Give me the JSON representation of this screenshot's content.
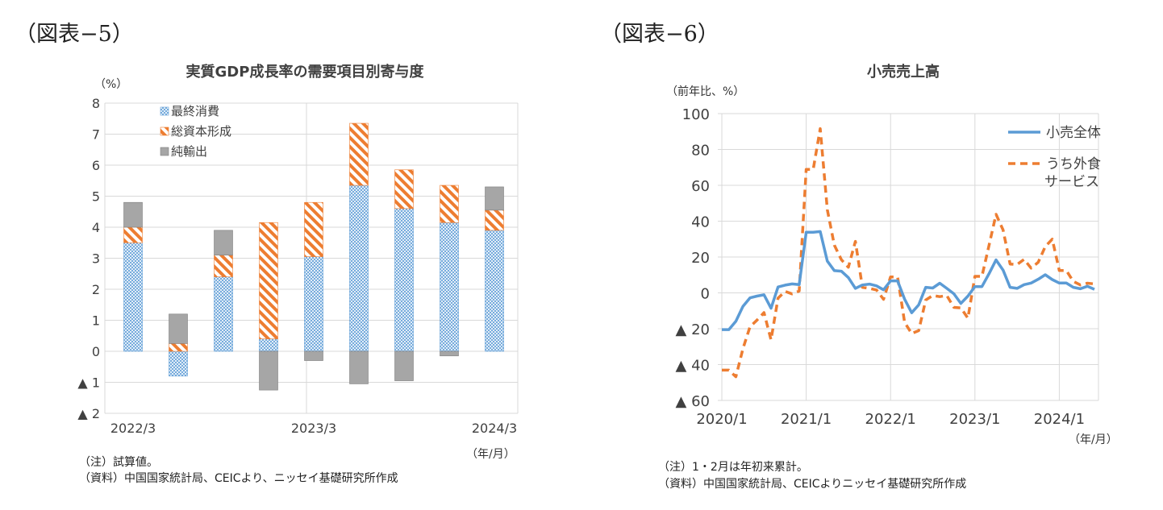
{
  "figures": [
    {
      "label": "（図表−5）",
      "title": "実質GDP成長率の需要項目別寄与度",
      "unit": "（%）",
      "xunit": "（年/月）",
      "notes": [
        "（注）試算値。",
        "（資料）中国国家統計局、CEICより、ニッセイ基礎研究所作成"
      ]
    },
    {
      "label": "（図表−6）",
      "title": "小売売上高",
      "unit": "（前年比、%）",
      "xunit": "（年/月）",
      "notes": [
        "（注）1・2月は年初来累計。",
        "（資料）中国国家統計局、CEICよりニッセイ基礎研究所作成"
      ]
    }
  ],
  "chart_data": [
    {
      "type": "bar",
      "stacked": true,
      "title": "実質GDP成長率の需要項目別寄与度",
      "ylabel": "（%）",
      "xlabel": "（年/月）",
      "ylim": [
        -2,
        8
      ],
      "yticks": [
        {
          "v": 8,
          "label": "8"
        },
        {
          "v": 7,
          "label": "7"
        },
        {
          "v": 6,
          "label": "6"
        },
        {
          "v": 5,
          "label": "5"
        },
        {
          "v": 4,
          "label": "4"
        },
        {
          "v": 3,
          "label": "3"
        },
        {
          "v": 2,
          "label": "2"
        },
        {
          "v": 1,
          "label": "1"
        },
        {
          "v": 0,
          "label": "0"
        },
        {
          "v": -1,
          "label": "▲ 1"
        },
        {
          "v": -2,
          "label": "▲ 2"
        }
      ],
      "categories": [
        "2022/3",
        "2022/6",
        "2022/9",
        "2022/12",
        "2023/3",
        "2023/6",
        "2023/9",
        "2023/12",
        "2024/3"
      ],
      "xtick_labels": [
        "2022/3",
        "",
        "",
        "",
        "2023/3",
        "",
        "",
        "",
        "2024/3"
      ],
      "grid": true,
      "legend_position": "top-left",
      "series": [
        {
          "name": "最終消費",
          "pattern": "dots",
          "color": "#5b9bd5",
          "values": [
            3.5,
            -0.8,
            2.4,
            0.4,
            3.05,
            5.35,
            4.6,
            4.15,
            3.9
          ]
        },
        {
          "name": "総資本形成",
          "pattern": "stripes",
          "color": "#ed7d31",
          "values": [
            0.5,
            0.25,
            0.7,
            3.75,
            1.75,
            2.0,
            1.25,
            1.2,
            0.65
          ]
        },
        {
          "name": "純輸出",
          "pattern": "solid",
          "color": "#a6a6a6",
          "values": [
            0.8,
            0.95,
            0.8,
            -1.25,
            -0.3,
            -1.05,
            -0.95,
            -0.15,
            0.75
          ]
        }
      ]
    },
    {
      "type": "line",
      "title": "小売売上高",
      "ylabel": "（前年比、%）",
      "xlabel": "（年/月）",
      "ylim": [
        -60,
        100
      ],
      "yticks": [
        {
          "v": 100,
          "label": "100"
        },
        {
          "v": 80,
          "label": "80"
        },
        {
          "v": 60,
          "label": "60"
        },
        {
          "v": 40,
          "label": "40"
        },
        {
          "v": 20,
          "label": "20"
        },
        {
          "v": 0,
          "label": "0"
        },
        {
          "v": -20,
          "label": "▲ 20"
        },
        {
          "v": -40,
          "label": "▲ 40"
        },
        {
          "v": -60,
          "label": "▲ 60"
        }
      ],
      "x_start": "2020/1",
      "x_end": "2024/6",
      "xtick_labels": [
        "2020/1",
        "2021/1",
        "2022/1",
        "2023/1",
        "2024/1"
      ],
      "grid": true,
      "legend_position": "top-right",
      "series": [
        {
          "name": "小売全体",
          "style": "solid",
          "color": "#5b9bd5",
          "width": 3.5,
          "values": [
            -20.5,
            -20.5,
            -15.8,
            -7.5,
            -2.8,
            -1.8,
            -1.1,
            -8.6,
            3.3,
            4.3,
            5,
            4.6,
            33.8,
            33.8,
            34.2,
            17.7,
            12.4,
            12.1,
            8.5,
            2.5,
            4.4,
            4.9,
            3.9,
            1.7,
            6.7,
            6.7,
            -3.5,
            -11.1,
            -6.7,
            3.1,
            2.7,
            5.4,
            2.5,
            -0.5,
            -5.9,
            -1.8,
            3.5,
            3.5,
            10.6,
            18.4,
            12.7,
            3.1,
            2.5,
            4.6,
            5.5,
            7.6,
            10.1,
            7.4,
            5.5,
            5.5,
            3.1,
            2.3,
            3.7,
            2.0
          ]
        },
        {
          "name": "うち外食\nサービス",
          "style": "dashed",
          "color": "#ed7d31",
          "width": 3.5,
          "values": [
            -43.1,
            -43.1,
            -46.8,
            -31.1,
            -18.9,
            -15.2,
            -11,
            -26.2,
            -2.9,
            0.8,
            -0.6,
            1,
            68.9,
            68.9,
            91.6,
            46.4,
            26.6,
            18.5,
            14.3,
            28.7,
            3.1,
            2.5,
            1.6,
            -3.6,
            8.9,
            8.9,
            -16.4,
            -22.7,
            -21.1,
            -4,
            -1.5,
            -2.1,
            -1.5,
            -8.1,
            -8.4,
            -14.1,
            9.2,
            9.2,
            26.3,
            43.8,
            35.1,
            16.1,
            15.8,
            18.7,
            13.8,
            17.1,
            25.8,
            30,
            12.5,
            12.5,
            6.4,
            4.4,
            5.4,
            5.0
          ]
        }
      ]
    }
  ]
}
